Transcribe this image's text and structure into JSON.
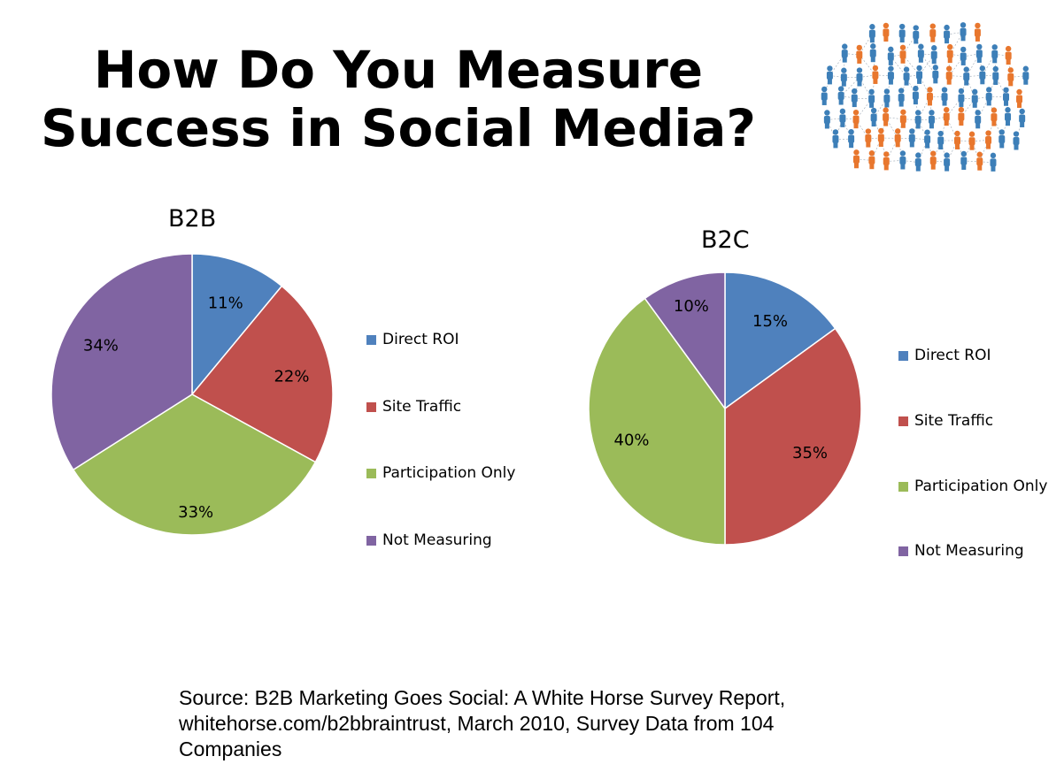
{
  "title": {
    "line1": "How Do You Measure",
    "line2": "Success in Social Media?"
  },
  "header_image": {
    "icon": "social-network-people-icon",
    "colors": [
      "#3d7fb8",
      "#e8772e"
    ]
  },
  "legend_items": [
    {
      "label": "Direct ROI",
      "color": "#4f81bd"
    },
    {
      "label": "Site Traffic",
      "color": "#c0504d"
    },
    {
      "label": "Participation Only",
      "color": "#9bbb59"
    },
    {
      "label": "Not Measuring",
      "color": "#8064a2"
    }
  ],
  "chart_data": [
    {
      "type": "pie",
      "title": "B2B",
      "categories": [
        "Direct ROI",
        "Site Traffic",
        "Participation Only",
        "Not Measuring"
      ],
      "values": [
        11,
        22,
        33,
        34
      ],
      "labels": [
        "11%",
        "22%",
        "33%",
        "34%"
      ],
      "colors": [
        "#4f81bd",
        "#c0504d",
        "#9bbb59",
        "#8064a2"
      ],
      "legend": "right"
    },
    {
      "type": "pie",
      "title": "B2C",
      "categories": [
        "Direct ROI",
        "Site Traffic",
        "Participation Only",
        "Not Measuring"
      ],
      "values": [
        15,
        35,
        40,
        10
      ],
      "labels": [
        "15%",
        "35%",
        "40%",
        "10%"
      ],
      "colors": [
        "#4f81bd",
        "#c0504d",
        "#9bbb59",
        "#8064a2"
      ],
      "legend": "right"
    }
  ],
  "source": {
    "line1": "Source: B2B Marketing Goes Social: A White Horse Survey Report,",
    "line2": "whitehorse.com/b2bbraintrust, March 2010, Survey Data from 104",
    "line3": "Companies"
  }
}
